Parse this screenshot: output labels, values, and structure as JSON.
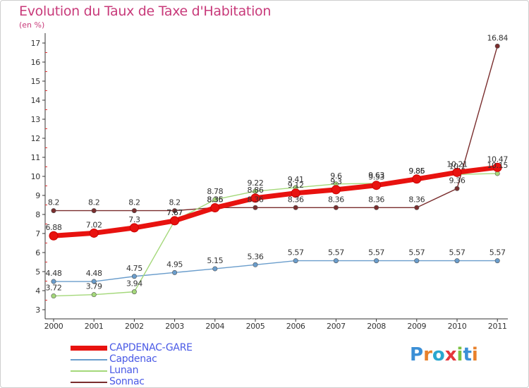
{
  "title": "Evolution du Taux de Taxe d'Habitation",
  "unit_label": "(en %)",
  "logo": {
    "letters": [
      "P",
      "r",
      "o",
      "x",
      "i",
      "t",
      "i"
    ],
    "colors": [
      "#3b8fd6",
      "#e8812c",
      "#2aa7cf",
      "#e5373b",
      "#7cc242",
      "#3b8fd6",
      "#e8812c"
    ]
  },
  "chart_data": {
    "type": "line",
    "title": "Evolution du Taux de Taxe d'Habitation",
    "ylabel": "(en %)",
    "xlabel": "",
    "x": [
      "2000",
      "2001",
      "2002",
      "2003",
      "2004",
      "2005",
      "2006",
      "2007",
      "2008",
      "2009",
      "2010",
      "2011"
    ],
    "ylim": [
      3,
      17
    ],
    "yticks": [
      "3",
      "4",
      "5",
      "6",
      "7",
      "8",
      "9",
      "10",
      "11",
      "12",
      "13",
      "14",
      "15",
      "16",
      "17"
    ],
    "grid": false,
    "legend": "bottom-left",
    "series": [
      {
        "name": "CAPDENAC-GARE",
        "color": "#e8120f",
        "values": [
          6.88,
          7.02,
          7.3,
          7.67,
          8.35,
          8.86,
          9.12,
          9.3,
          9.53,
          9.86,
          10.21,
          10.47
        ],
        "labels": [
          "6.88",
          "7.02",
          "7.3",
          "7.67",
          "8.35",
          "8.86",
          "9.12",
          "9.3",
          "9.53",
          "9.86",
          "10.21",
          "10.47"
        ]
      },
      {
        "name": "Capdenac",
        "color": "#6a9dcc",
        "values": [
          4.48,
          4.48,
          4.75,
          4.95,
          5.15,
          5.36,
          5.57,
          5.57,
          5.57,
          5.57,
          5.57,
          5.57
        ],
        "labels": [
          "4.48",
          "4.48",
          "4.75",
          "4.95",
          "5.15",
          "5.36",
          "5.57",
          "5.57",
          "5.57",
          "5.57",
          "5.57",
          "5.57"
        ]
      },
      {
        "name": "Lunan",
        "color": "#a4d87a",
        "values": [
          3.72,
          3.79,
          3.94,
          7.67,
          8.78,
          9.22,
          9.41,
          9.6,
          9.63,
          9.85,
          10.1,
          10.15
        ],
        "labels": [
          "3.72",
          "3.79",
          "3.94",
          "7.67",
          "8.78",
          "9.22",
          "9.41",
          "9.6",
          "9.63",
          "9.85",
          "10.1",
          "10.15"
        ]
      },
      {
        "name": "Sonnac",
        "color": "#7a2e2e",
        "values": [
          8.2,
          8.2,
          8.2,
          8.2,
          8.36,
          8.36,
          8.36,
          8.36,
          8.36,
          8.36,
          9.36,
          16.84
        ],
        "labels": [
          "8.2",
          "8.2",
          "8.2",
          "8.2",
          "8.36",
          "8.36",
          "8.36",
          "8.36",
          "8.36",
          "8.36",
          "9.36",
          "16.84"
        ]
      }
    ]
  }
}
